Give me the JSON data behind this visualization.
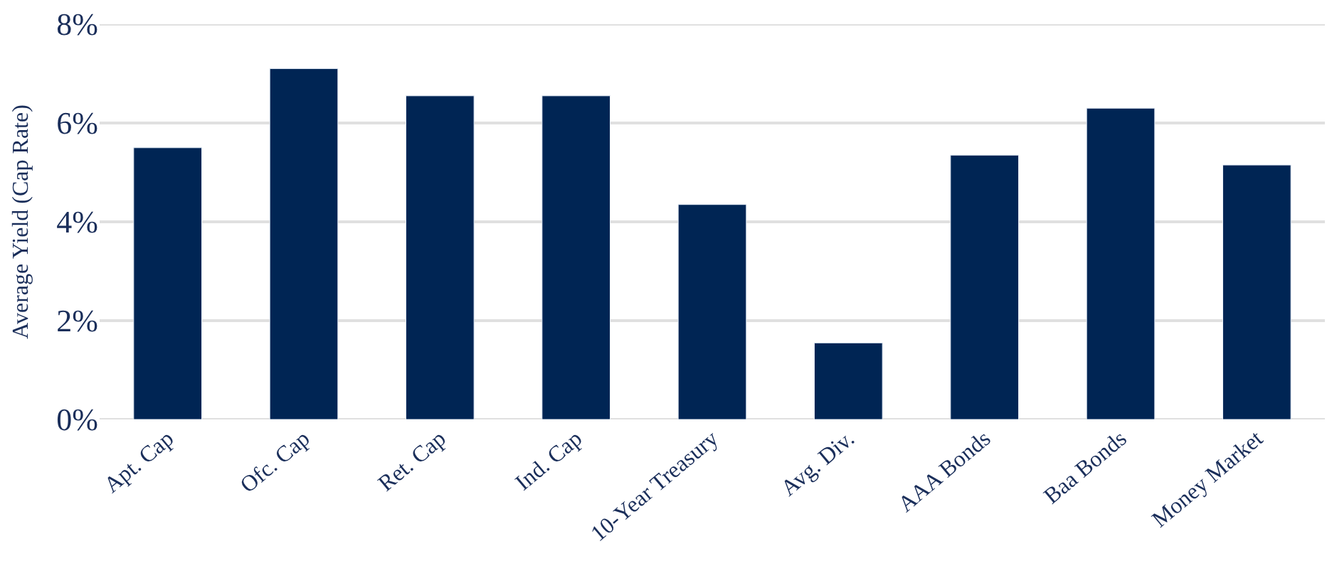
{
  "chart_data": {
    "type": "bar",
    "ylabel": "Average Yield (Cap Rate)",
    "categories": [
      "Apt. Cap",
      "Ofc. Cap",
      "Ret. Cap",
      "Ind. Cap",
      "10-Year Treasury",
      "Avg. Div.",
      "AAA Bonds",
      "Baa Bonds",
      "Money Market"
    ],
    "values": [
      5.5,
      7.1,
      6.55,
      6.55,
      4.35,
      1.55,
      5.35,
      6.3,
      5.15
    ],
    "color": "#002554",
    "ylim": [
      0,
      8
    ],
    "yticks": [
      {
        "value": 0,
        "label": "0%"
      },
      {
        "value": 2,
        "label": "2%"
      },
      {
        "value": 4,
        "label": "4%"
      },
      {
        "value": 6,
        "label": "6%"
      },
      {
        "value": 8,
        "label": "8%"
      }
    ],
    "grid": "y"
  }
}
